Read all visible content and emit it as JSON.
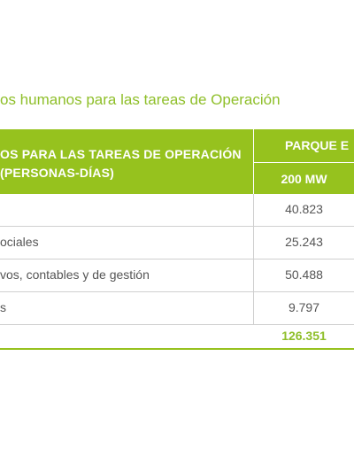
{
  "title": "os humanos para las tareas de Operación",
  "table": {
    "header_left_line1": "OS PARA LAS TAREAS DE OPERACIÓN",
    "header_left_line2": "(PERSONAS-DÍAS)",
    "header_right_top": "PARQUE E",
    "header_right_bottom": "200 MW",
    "rows": [
      {
        "label": "",
        "value": "40.823"
      },
      {
        "label": "ociales",
        "value": "25.243"
      },
      {
        "label": "vos, contables y de gestión",
        "value": "50.488"
      },
      {
        "label": "s",
        "value": "9.797"
      }
    ],
    "total": "126.351"
  },
  "colors": {
    "accent": "#96c21e",
    "text": "#555555",
    "rule": "#cfcfcf"
  }
}
